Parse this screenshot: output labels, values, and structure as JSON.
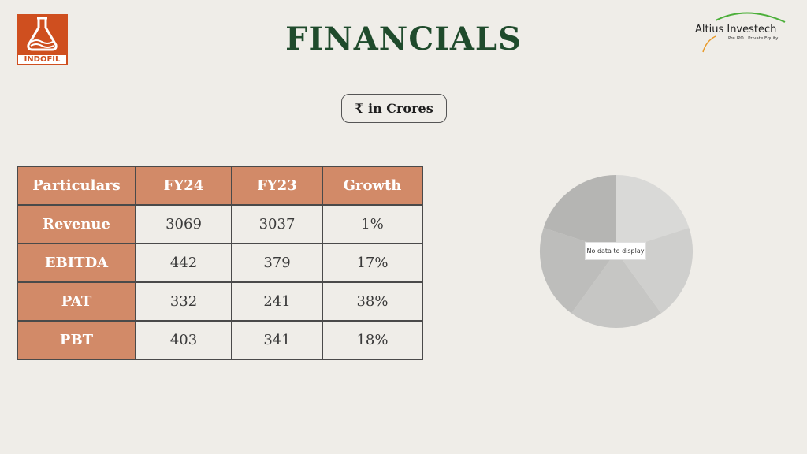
{
  "logo_left": {
    "text": "INDOFIL",
    "color": "#cf4f1f"
  },
  "title": "FINANCIALS",
  "logo_right": {
    "brand": "Altius Investech",
    "tagline": "Pre IPO | Private Equity"
  },
  "unit_label": "₹ in Crores",
  "table": {
    "headers": [
      "Particulars",
      "FY24",
      "FY23",
      "Growth"
    ],
    "rows": [
      [
        "Revenue",
        "3069",
        "3037",
        "1%"
      ],
      [
        "EBITDA",
        "442",
        "379",
        "17%"
      ],
      [
        "PAT",
        "332",
        "241",
        "38%"
      ],
      [
        "PBT",
        "403",
        "341",
        "18%"
      ]
    ]
  },
  "chart": {
    "type": "pie",
    "message": "No data to display"
  },
  "colors": {
    "accent": "#d28a68",
    "title": "#1f4b2c",
    "background": "#efede8"
  }
}
